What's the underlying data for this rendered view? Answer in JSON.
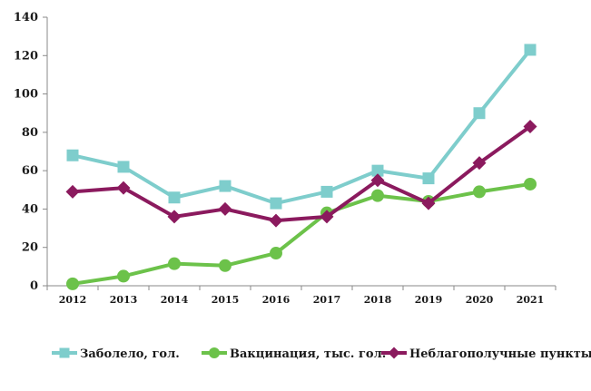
{
  "chart_data": {
    "type": "line",
    "title": "",
    "xlabel": "",
    "ylabel": "",
    "categories": [
      "2012",
      "2013",
      "2014",
      "2015",
      "2016",
      "2017",
      "2018",
      "2019",
      "2020",
      "2021"
    ],
    "ylim": [
      0,
      140
    ],
    "yticks": [
      "0",
      "20",
      "40",
      "60",
      "80",
      "100",
      "120",
      "140"
    ],
    "grid": false,
    "legend_position": "bottom",
    "series": [
      {
        "name": "Заболело, гол.",
        "values": [
          68,
          62,
          46,
          52,
          43,
          49,
          60,
          56,
          90,
          123
        ],
        "color": "#7ecdcc",
        "marker": "square"
      },
      {
        "name": "Вакцинация, тыс. гол.",
        "values": [
          1,
          5,
          11.5,
          10.5,
          17,
          38,
          47,
          44,
          49,
          53
        ],
        "color": "#6cc24a",
        "marker": "circle"
      },
      {
        "name": "Неблагополучные пункты",
        "values": [
          49,
          51,
          36,
          40,
          34,
          36,
          55,
          43,
          64,
          83
        ],
        "color": "#8b1a5e",
        "marker": "diamond"
      }
    ]
  }
}
